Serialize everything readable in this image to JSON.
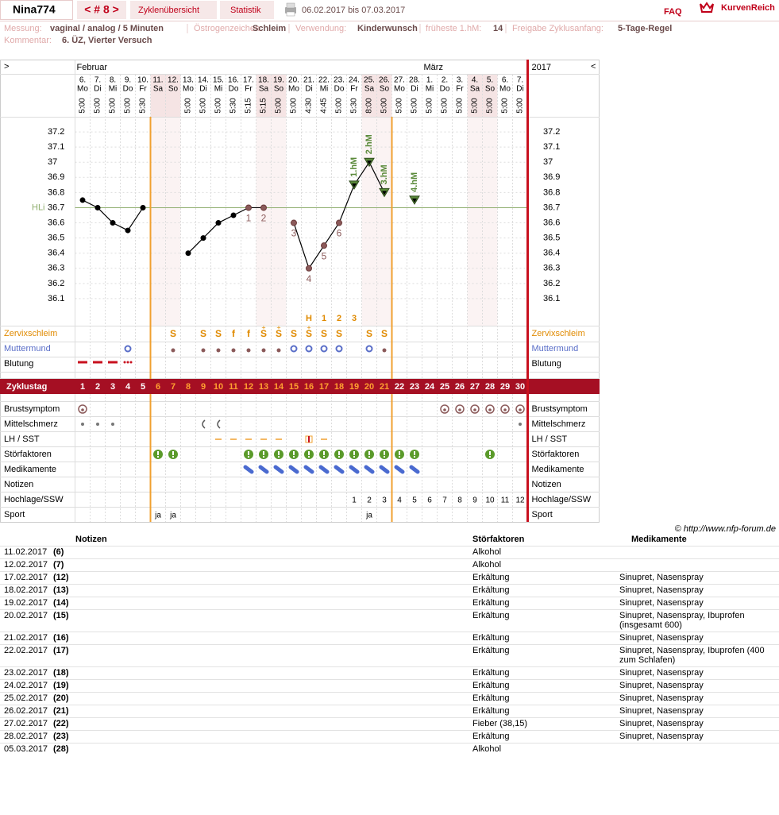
{
  "header": {
    "user": "Nina774",
    "cycle_nav": "< # 8 >",
    "tab_overview": "Zyklenübersicht",
    "tab_stats": "Statistik",
    "range": "06.02.2017 bis 07.03.2017",
    "faq": "FAQ",
    "brand": "KurvenReich"
  },
  "info": {
    "measure_label": "Messung:",
    "measure": "vaginal / analog / 5 Minuten",
    "estrogen_label": "Östrogenzeichen:",
    "estrogen": "Schleim",
    "usage_label": "Verwendung:",
    "usage": "Kinderwunsch",
    "earliest_label": "früheste 1.hM:",
    "earliest": "14",
    "release_label": "Freigabe Zyklusanfang:",
    "release": "5-Tage-Regel",
    "comment_label": "Kommentar:",
    "comment": "6. ÜZ, Vierter Versuch"
  },
  "chart_data": {
    "type": "line",
    "nav_left": ">",
    "nav_right": "<",
    "months": [
      "Februar",
      "März"
    ],
    "year": "2017",
    "dates": [
      "6.",
      "7.",
      "8.",
      "9.",
      "10.",
      "11.",
      "12.",
      "13.",
      "14.",
      "15.",
      "16.",
      "17.",
      "18.",
      "19.",
      "20.",
      "21.",
      "22.",
      "23.",
      "24.",
      "25.",
      "26.",
      "27.",
      "28.",
      "1.",
      "2.",
      "3.",
      "4.",
      "5.",
      "6.",
      "7."
    ],
    "weekdays": [
      "Mo",
      "Di",
      "Mi",
      "Do",
      "Fr",
      "Sa",
      "So",
      "Mo",
      "Di",
      "Mi",
      "Do",
      "Fr",
      "Sa",
      "So",
      "Mo",
      "Di",
      "Mi",
      "Do",
      "Fr",
      "Sa",
      "So",
      "Mo",
      "Di",
      "Mi",
      "Do",
      "Fr",
      "Sa",
      "So",
      "Mo",
      "Di"
    ],
    "times": [
      "5:00",
      "5:00",
      "5:00",
      "5:00",
      "5:30",
      null,
      null,
      "5:00",
      "5:00",
      "5:00",
      "5:30",
      "5:15",
      "5:15",
      "5:00",
      "5:00",
      "4:30",
      "4:45",
      "5:00",
      "5:30",
      "8:00",
      "5:00",
      "5:00",
      "5:00",
      "5:00",
      "5:00",
      "5:00",
      "5:00",
      "5:00",
      "5:00",
      "5:00"
    ],
    "values": [
      36.75,
      36.7,
      36.6,
      36.55,
      36.7,
      null,
      null,
      36.4,
      36.5,
      36.6,
      36.65,
      36.7,
      36.7,
      null,
      36.6,
      36.3,
      36.45,
      36.6,
      36.85,
      37.0,
      36.8,
      null,
      36.75,
      null,
      null,
      null,
      null,
      null,
      null,
      null
    ],
    "point_labels": [
      null,
      null,
      null,
      null,
      null,
      null,
      null,
      null,
      null,
      null,
      null,
      "1",
      "2",
      null,
      "3",
      "4",
      "5",
      "6",
      "1.hM",
      "2.hM",
      "3.hM",
      null,
      "4.hM",
      null,
      null,
      null,
      null,
      null,
      null,
      null
    ],
    "ylim": [
      36.0,
      37.3
    ],
    "yticks": [
      37.2,
      37.1,
      37,
      36.9,
      36.8,
      36.7,
      36.6,
      36.5,
      36.4,
      36.3,
      36.2,
      36.1
    ],
    "coverline": {
      "label": "HLi",
      "value": 36.7
    },
    "cycle_day_label": "Zyklustag",
    "cycle_days": [
      1,
      2,
      3,
      4,
      5,
      6,
      7,
      8,
      9,
      10,
      11,
      12,
      13,
      14,
      15,
      16,
      17,
      18,
      19,
      20,
      21,
      22,
      23,
      24,
      25,
      26,
      27,
      28,
      29,
      30
    ],
    "rows": {
      "zervixschleim": {
        "label": "Zervixschleim",
        "cells": [
          null,
          null,
          null,
          null,
          null,
          null,
          "S",
          null,
          "S",
          "S",
          "f",
          "f",
          "S",
          "S",
          "S",
          "S",
          "S",
          "S",
          null,
          "S",
          "S",
          null,
          null,
          null,
          null,
          null,
          null,
          null,
          null,
          null
        ],
        "plus": [
          null,
          null,
          null,
          null,
          null,
          null,
          null,
          null,
          null,
          null,
          null,
          null,
          "+",
          "+",
          null,
          "+",
          null,
          null,
          null,
          null,
          null,
          null,
          null,
          null,
          null,
          null,
          null,
          null,
          null,
          null
        ],
        "peak": [
          null,
          null,
          null,
          null,
          null,
          null,
          null,
          null,
          null,
          null,
          null,
          null,
          null,
          null,
          null,
          "H",
          "1",
          "2",
          "3",
          null,
          null,
          null,
          null,
          null,
          null,
          null,
          null,
          null,
          null,
          null
        ]
      },
      "muttermund": {
        "label": "Muttermund"
      },
      "blutung": {
        "label": "Blutung"
      },
      "brustsymptom": {
        "label": "Brustsymptom"
      },
      "mittelschmerz": {
        "label": "Mittelschmerz"
      },
      "lh": {
        "label": "LH / SST"
      },
      "stoerfaktoren": {
        "label": "Störfaktoren"
      },
      "medikamente": {
        "label": "Medikamente"
      },
      "notizen": {
        "label": "Notizen"
      },
      "hochlage": {
        "label": "Hochlage/SSW",
        "cells": [
          null,
          null,
          null,
          null,
          null,
          null,
          null,
          null,
          null,
          null,
          null,
          null,
          null,
          null,
          null,
          null,
          null,
          null,
          1,
          2,
          3,
          4,
          5,
          6,
          7,
          8,
          9,
          10,
          11,
          12
        ]
      },
      "sport": {
        "label": "Sport",
        "cells": [
          null,
          null,
          null,
          null,
          null,
          "ja",
          "ja",
          null,
          null,
          null,
          null,
          null,
          null,
          null,
          null,
          null,
          null,
          null,
          null,
          "ja",
          null,
          null,
          null,
          null,
          null,
          null,
          null,
          null,
          null,
          null
        ]
      }
    }
  },
  "copyright": "© http://www.nfp-forum.de",
  "table": {
    "headers": {
      "notes": "Notizen",
      "disturb": "Störfaktoren",
      "meds": "Medikamente"
    },
    "rows": [
      {
        "date": "11.02.2017",
        "day": "(6)",
        "disturb": "Alkohol",
        "meds": null
      },
      {
        "date": "12.02.2017",
        "day": "(7)",
        "disturb": "Alkohol",
        "meds": null
      },
      {
        "date": "17.02.2017",
        "day": "(12)",
        "disturb": "Erkältung",
        "meds": "Sinupret, Nasenspray"
      },
      {
        "date": "18.02.2017",
        "day": "(13)",
        "disturb": "Erkältung",
        "meds": "Sinupret, Nasenspray"
      },
      {
        "date": "19.02.2017",
        "day": "(14)",
        "disturb": "Erkältung",
        "meds": "Sinupret, Nasenspray"
      },
      {
        "date": "20.02.2017",
        "day": "(15)",
        "disturb": "Erkältung",
        "meds": "Sinupret, Nasenspray, Ibuprofen (insgesamt 600)"
      },
      {
        "date": "21.02.2017",
        "day": "(16)",
        "disturb": "Erkältung",
        "meds": "Sinupret, Nasenspray"
      },
      {
        "date": "22.02.2017",
        "day": "(17)",
        "disturb": "Erkältung",
        "meds": "Sinupret, Nasenspray, Ibuprofen (400 zum Schlafen)"
      },
      {
        "date": "23.02.2017",
        "day": "(18)",
        "disturb": "Erkältung",
        "meds": "Sinupret, Nasenspray"
      },
      {
        "date": "24.02.2017",
        "day": "(19)",
        "disturb": "Erkältung",
        "meds": "Sinupret, Nasenspray"
      },
      {
        "date": "25.02.2017",
        "day": "(20)",
        "disturb": "Erkältung",
        "meds": "Sinupret, Nasenspray"
      },
      {
        "date": "26.02.2017",
        "day": "(21)",
        "disturb": "Erkältung",
        "meds": "Sinupret, Nasenspray"
      },
      {
        "date": "27.02.2017",
        "day": "(22)",
        "disturb": "Fieber (38,15)",
        "meds": "Sinupret, Nasenspray"
      },
      {
        "date": "28.02.2017",
        "day": "(23)",
        "disturb": "Erkältung",
        "meds": "Sinupret, Nasenspray"
      },
      {
        "date": "05.03.2017",
        "day": "(28)",
        "disturb": "Alkohol",
        "meds": null
      }
    ]
  }
}
